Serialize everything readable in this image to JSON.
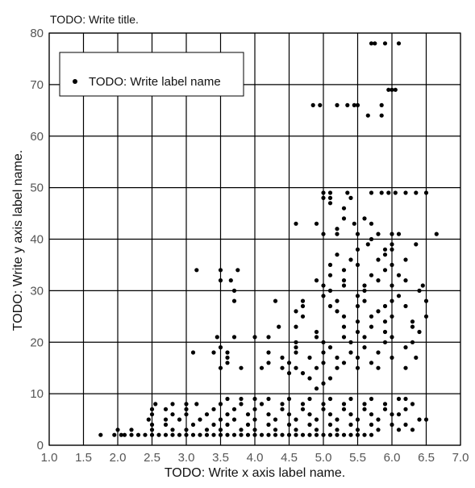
{
  "chart_data": {
    "type": "scatter",
    "title": "TODO: Write title.",
    "xlabel": "TODO: Write x axis label name.",
    "ylabel": "TODO: Write y axis label name.",
    "xlim": [
      1.0,
      7.0
    ],
    "ylim": [
      0,
      80
    ],
    "xticks": [
      "1.0",
      "1.5",
      "2.0",
      "2.5",
      "3.0",
      "3.5",
      "4.0",
      "4.5",
      "5.0",
      "5.5",
      "6.0",
      "6.5",
      "7.0"
    ],
    "yticks": [
      "0",
      "10",
      "20",
      "30",
      "40",
      "50",
      "60",
      "70",
      "80"
    ],
    "grid": true,
    "legend": {
      "position": "top-left",
      "entries": [
        "TODO: Write label name"
      ]
    },
    "colors": {
      "marker": "#000000",
      "grid": "#000000",
      "background": "#ffffff"
    },
    "series": [
      {
        "name": "TODO: Write label name",
        "points": [
          [
            1.75,
            2
          ],
          [
            1.95,
            2
          ],
          [
            2.05,
            2
          ],
          [
            2.1,
            2
          ],
          [
            2.2,
            2
          ],
          [
            2.3,
            2
          ],
          [
            2.4,
            2
          ],
          [
            2.5,
            2
          ],
          [
            2.6,
            2
          ],
          [
            2.7,
            2
          ],
          [
            2.8,
            2
          ],
          [
            2.9,
            2
          ],
          [
            3.0,
            2
          ],
          [
            3.1,
            2
          ],
          [
            3.2,
            2
          ],
          [
            3.3,
            2
          ],
          [
            3.4,
            2
          ],
          [
            3.5,
            2
          ],
          [
            3.6,
            2
          ],
          [
            3.7,
            2
          ],
          [
            3.8,
            2
          ],
          [
            3.9,
            2
          ],
          [
            4.0,
            2
          ],
          [
            4.1,
            2
          ],
          [
            4.2,
            2
          ],
          [
            4.3,
            2
          ],
          [
            4.4,
            2
          ],
          [
            4.5,
            2
          ],
          [
            4.6,
            2
          ],
          [
            4.7,
            2
          ],
          [
            4.8,
            2
          ],
          [
            4.9,
            2
          ],
          [
            5.0,
            2
          ],
          [
            5.1,
            2
          ],
          [
            5.2,
            2
          ],
          [
            5.3,
            2
          ],
          [
            5.4,
            2
          ],
          [
            5.5,
            2
          ],
          [
            5.6,
            2
          ],
          [
            5.7,
            2
          ],
          [
            2.0,
            3
          ],
          [
            2.2,
            3
          ],
          [
            2.5,
            3
          ],
          [
            2.8,
            3
          ],
          [
            3.0,
            3
          ],
          [
            3.3,
            3
          ],
          [
            3.5,
            3
          ],
          [
            3.8,
            3
          ],
          [
            4.0,
            3
          ],
          [
            4.3,
            3
          ],
          [
            4.6,
            3
          ],
          [
            4.9,
            3
          ],
          [
            5.2,
            3
          ],
          [
            5.5,
            3
          ],
          [
            5.8,
            3
          ],
          [
            6.1,
            3
          ],
          [
            6.3,
            3
          ],
          [
            2.5,
            4
          ],
          [
            2.7,
            4
          ],
          [
            3.1,
            4
          ],
          [
            3.4,
            4
          ],
          [
            3.6,
            4
          ],
          [
            3.9,
            4
          ],
          [
            4.2,
            4
          ],
          [
            4.5,
            4
          ],
          [
            4.8,
            4
          ],
          [
            5.1,
            4
          ],
          [
            5.4,
            4
          ],
          [
            5.7,
            4
          ],
          [
            6.0,
            4
          ],
          [
            6.2,
            4
          ],
          [
            2.45,
            5
          ],
          [
            2.7,
            5
          ],
          [
            2.9,
            5
          ],
          [
            3.2,
            5
          ],
          [
            3.5,
            5
          ],
          [
            3.7,
            5
          ],
          [
            4.0,
            5
          ],
          [
            4.3,
            5
          ],
          [
            4.6,
            5
          ],
          [
            4.9,
            5
          ],
          [
            5.2,
            5
          ],
          [
            5.5,
            5
          ],
          [
            5.8,
            5
          ],
          [
            6.4,
            5
          ],
          [
            6.5,
            5
          ],
          [
            2.5,
            6
          ],
          [
            2.8,
            6
          ],
          [
            3.0,
            6
          ],
          [
            3.3,
            6
          ],
          [
            3.6,
            6
          ],
          [
            3.9,
            6
          ],
          [
            4.2,
            6
          ],
          [
            4.5,
            6
          ],
          [
            4.8,
            6
          ],
          [
            5.1,
            6
          ],
          [
            5.4,
            6
          ],
          [
            5.7,
            6
          ],
          [
            6.0,
            6
          ],
          [
            6.1,
            6
          ],
          [
            2.5,
            7
          ],
          [
            2.7,
            7
          ],
          [
            3.0,
            7
          ],
          [
            3.4,
            7
          ],
          [
            3.7,
            7
          ],
          [
            4.0,
            7
          ],
          [
            4.4,
            7
          ],
          [
            4.7,
            7
          ],
          [
            5.0,
            7
          ],
          [
            5.3,
            7
          ],
          [
            5.6,
            7
          ],
          [
            5.9,
            7
          ],
          [
            6.2,
            7
          ],
          [
            2.55,
            8
          ],
          [
            2.8,
            8
          ],
          [
            3.0,
            8
          ],
          [
            3.15,
            8
          ],
          [
            3.5,
            8
          ],
          [
            3.8,
            8
          ],
          [
            4.1,
            8
          ],
          [
            4.4,
            8
          ],
          [
            4.7,
            8
          ],
          [
            5.0,
            8
          ],
          [
            5.3,
            8
          ],
          [
            5.6,
            8
          ],
          [
            5.9,
            8
          ],
          [
            6.3,
            8
          ],
          [
            3.6,
            9
          ],
          [
            3.8,
            9
          ],
          [
            4.0,
            9
          ],
          [
            4.2,
            9
          ],
          [
            4.5,
            9
          ],
          [
            4.8,
            9
          ],
          [
            5.1,
            9
          ],
          [
            5.4,
            9
          ],
          [
            5.7,
            9
          ],
          [
            6.1,
            9
          ],
          [
            6.2,
            9
          ],
          [
            4.9,
            11
          ],
          [
            5.0,
            12
          ],
          [
            4.8,
            13
          ],
          [
            5.1,
            13
          ],
          [
            4.5,
            14
          ],
          [
            4.7,
            14
          ],
          [
            3.5,
            15
          ],
          [
            3.8,
            15
          ],
          [
            4.1,
            15
          ],
          [
            4.4,
            15
          ],
          [
            4.6,
            15
          ],
          [
            4.9,
            15
          ],
          [
            5.2,
            15
          ],
          [
            5.5,
            15
          ],
          [
            5.8,
            15
          ],
          [
            6.2,
            15
          ],
          [
            3.6,
            16
          ],
          [
            4.2,
            16
          ],
          [
            4.5,
            16
          ],
          [
            5.0,
            16
          ],
          [
            5.3,
            16
          ],
          [
            5.7,
            16
          ],
          [
            3.6,
            17
          ],
          [
            4.4,
            17
          ],
          [
            4.8,
            17
          ],
          [
            5.2,
            17
          ],
          [
            5.5,
            17
          ],
          [
            6.0,
            17
          ],
          [
            6.35,
            17
          ],
          [
            3.1,
            18
          ],
          [
            3.4,
            18
          ],
          [
            3.6,
            18
          ],
          [
            4.2,
            18
          ],
          [
            4.6,
            18
          ],
          [
            5.0,
            18
          ],
          [
            5.4,
            18
          ],
          [
            5.8,
            18
          ],
          [
            3.5,
            19
          ],
          [
            4.6,
            19
          ],
          [
            5.1,
            19
          ],
          [
            5.6,
            19
          ],
          [
            6.2,
            19
          ],
          [
            4.6,
            20
          ],
          [
            5.0,
            20
          ],
          [
            5.4,
            20
          ],
          [
            5.9,
            20
          ],
          [
            6.3,
            20
          ],
          [
            3.45,
            21
          ],
          [
            3.7,
            21
          ],
          [
            4.0,
            21
          ],
          [
            4.2,
            21
          ],
          [
            4.9,
            21
          ],
          [
            5.3,
            21
          ],
          [
            5.6,
            21
          ],
          [
            6.0,
            21
          ],
          [
            4.9,
            22
          ],
          [
            5.5,
            22
          ],
          [
            5.9,
            22
          ],
          [
            6.4,
            22
          ],
          [
            4.35,
            23
          ],
          [
            4.6,
            23
          ],
          [
            5.3,
            23
          ],
          [
            5.7,
            23
          ],
          [
            6.3,
            23
          ],
          [
            5.5,
            24
          ],
          [
            5.9,
            24
          ],
          [
            6.3,
            24
          ],
          [
            4.7,
            25
          ],
          [
            5.3,
            25
          ],
          [
            5.7,
            25
          ],
          [
            6.0,
            25
          ],
          [
            6.5,
            25
          ],
          [
            4.6,
            26
          ],
          [
            5.2,
            26
          ],
          [
            5.8,
            26
          ],
          [
            4.7,
            27
          ],
          [
            5.1,
            27
          ],
          [
            5.5,
            27
          ],
          [
            5.9,
            27
          ],
          [
            6.2,
            27
          ],
          [
            3.7,
            28
          ],
          [
            4.3,
            28
          ],
          [
            4.7,
            28
          ],
          [
            5.2,
            28
          ],
          [
            5.6,
            28
          ],
          [
            6.0,
            28
          ],
          [
            6.5,
            28
          ],
          [
            5.0,
            29
          ],
          [
            5.5,
            29
          ],
          [
            6.1,
            29
          ],
          [
            3.7,
            30
          ],
          [
            5.1,
            30
          ],
          [
            5.6,
            30
          ],
          [
            6.4,
            30
          ],
          [
            5.0,
            31
          ],
          [
            5.3,
            31
          ],
          [
            5.6,
            31
          ],
          [
            6.0,
            31
          ],
          [
            6.45,
            31
          ],
          [
            3.5,
            32
          ],
          [
            3.65,
            32
          ],
          [
            4.9,
            32
          ],
          [
            5.3,
            32
          ],
          [
            5.8,
            32
          ],
          [
            6.2,
            32
          ],
          [
            5.1,
            33
          ],
          [
            5.7,
            33
          ],
          [
            6.1,
            33
          ],
          [
            3.15,
            34
          ],
          [
            3.5,
            34
          ],
          [
            3.75,
            34
          ],
          [
            5.3,
            34
          ],
          [
            5.9,
            34
          ],
          [
            5.1,
            35
          ],
          [
            5.5,
            35
          ],
          [
            6.0,
            35
          ],
          [
            5.4,
            36
          ],
          [
            5.8,
            36
          ],
          [
            6.2,
            36
          ],
          [
            5.2,
            37
          ],
          [
            5.9,
            37
          ],
          [
            5.5,
            38
          ],
          [
            5.9,
            38
          ],
          [
            6.0,
            38
          ],
          [
            5.65,
            39
          ],
          [
            6.0,
            39
          ],
          [
            6.35,
            39
          ],
          [
            5.7,
            40
          ],
          [
            5.0,
            41
          ],
          [
            5.2,
            41
          ],
          [
            5.5,
            41
          ],
          [
            5.8,
            41
          ],
          [
            6.0,
            41
          ],
          [
            6.1,
            41
          ],
          [
            6.65,
            41
          ],
          [
            5.2,
            42
          ],
          [
            4.6,
            43
          ],
          [
            4.9,
            43
          ],
          [
            5.45,
            43
          ],
          [
            5.7,
            43
          ],
          [
            5.3,
            44
          ],
          [
            5.6,
            44
          ],
          [
            5.3,
            46
          ],
          [
            5.1,
            47
          ],
          [
            5.0,
            48
          ],
          [
            5.1,
            48
          ],
          [
            5.4,
            48
          ],
          [
            5.0,
            49
          ],
          [
            5.1,
            49
          ],
          [
            5.35,
            49
          ],
          [
            5.7,
            49
          ],
          [
            5.85,
            49
          ],
          [
            5.95,
            49
          ],
          [
            6.05,
            49
          ],
          [
            6.2,
            49
          ],
          [
            6.35,
            49
          ],
          [
            6.5,
            49
          ],
          [
            5.65,
            64
          ],
          [
            5.85,
            64
          ],
          [
            4.85,
            66
          ],
          [
            4.95,
            66
          ],
          [
            5.2,
            66
          ],
          [
            5.35,
            66
          ],
          [
            5.45,
            66
          ],
          [
            5.5,
            66
          ],
          [
            5.85,
            66
          ],
          [
            5.95,
            69
          ],
          [
            6.0,
            69
          ],
          [
            6.05,
            69
          ],
          [
            5.7,
            78
          ],
          [
            5.75,
            78
          ],
          [
            5.9,
            78
          ],
          [
            6.1,
            78
          ]
        ]
      }
    ]
  }
}
